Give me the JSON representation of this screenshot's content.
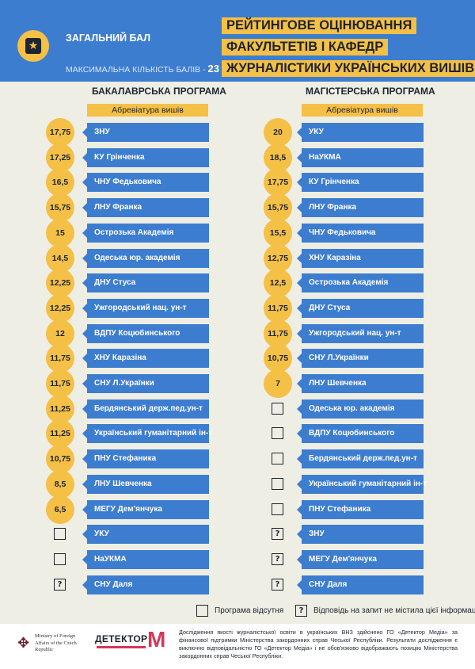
{
  "header": {
    "total_label": "ЗАГАЛЬНИЙ БАЛ",
    "max_label": "МАКСИМАЛЬНА КІЛЬКІСТЬ БАЛІВ -",
    "max_value": "23",
    "title_lines": [
      "РЕЙТИНГОВЕ ОЦІНЮВАННЯ",
      "ФАКУЛЬТЕТІВ І КАФЕДР",
      "ЖУРНАЛІСТИКИ УКРАЇНСЬКИХ ВИШІВ"
    ],
    "star_icon": "star-icon"
  },
  "chart_data": [
    {
      "type": "table",
      "title": "БАКАЛАВРСЬКА ПРОГРАМА",
      "column_label": "Абревіатура вишів",
      "max_score": 23,
      "rows": [
        {
          "name": "ЗНУ",
          "score": "17,75",
          "status": "score"
        },
        {
          "name": "КУ Грінченка",
          "score": "17,25",
          "status": "score"
        },
        {
          "name": "ЧНУ Федьковича",
          "score": "16,5",
          "status": "score"
        },
        {
          "name": "ЛНУ Франка",
          "score": "15,75",
          "status": "score"
        },
        {
          "name": "Острозька Академія",
          "score": "15",
          "status": "score"
        },
        {
          "name": "Одеська юр. академія",
          "score": "14,5",
          "status": "score"
        },
        {
          "name": "ДНУ Стуса",
          "score": "12,25",
          "status": "score"
        },
        {
          "name": "Ужгородський нац. ун-т",
          "score": "12,25",
          "status": "score"
        },
        {
          "name": "ВДПУ Коцюбинського",
          "score": "12",
          "status": "score"
        },
        {
          "name": "ХНУ Каразіна",
          "score": "11,75",
          "status": "score"
        },
        {
          "name": "СНУ Л.Українки",
          "score": "11,75",
          "status": "score"
        },
        {
          "name": "Бердянський держ.пед.ун-т",
          "score": "11,25",
          "status": "score"
        },
        {
          "name": "Український гуманітарний ін-т",
          "score": "11,25",
          "status": "score"
        },
        {
          "name": "ПНУ Стефаника",
          "score": "10,75",
          "status": "score"
        },
        {
          "name": "ЛНУ Шевченка",
          "score": "8,5",
          "status": "score"
        },
        {
          "name": "МЕГУ Дем'янчука",
          "score": "6,5",
          "status": "score"
        },
        {
          "name": "УКУ",
          "score": "",
          "status": "absent"
        },
        {
          "name": "НаУКМА",
          "score": "",
          "status": "absent"
        },
        {
          "name": "СНУ Даля",
          "score": "",
          "status": "no-info"
        }
      ]
    },
    {
      "type": "table",
      "title": "МАГІСТЕРСЬКА ПРОГРАМА",
      "column_label": "Абревіатура вишів",
      "max_score": 23,
      "rows": [
        {
          "name": "УКУ",
          "score": "20",
          "status": "score"
        },
        {
          "name": "НаУКМА",
          "score": "18,5",
          "status": "score"
        },
        {
          "name": "КУ Грінченка",
          "score": "17,75",
          "status": "score"
        },
        {
          "name": "ЛНУ Франка",
          "score": "15,75",
          "status": "score"
        },
        {
          "name": "ЧНУ Федьковича",
          "score": "15,5",
          "status": "score"
        },
        {
          "name": "ХНУ Каразіна",
          "score": "12,75",
          "status": "score"
        },
        {
          "name": "Острозька Академія",
          "score": "12,5",
          "status": "score"
        },
        {
          "name": "ДНУ Стуса",
          "score": "11,75",
          "status": "score"
        },
        {
          "name": "Ужгородський нац. ун-т",
          "score": "11,75",
          "status": "score"
        },
        {
          "name": "СНУ Л.Українки",
          "score": "10,75",
          "status": "score"
        },
        {
          "name": "ЛНУ Шевченка",
          "score": "7",
          "status": "score"
        },
        {
          "name": "Одеська юр. академія",
          "score": "",
          "status": "absent"
        },
        {
          "name": "ВДПУ Коцюбинського",
          "score": "",
          "status": "absent"
        },
        {
          "name": "Бердянський держ.пед.ун-т",
          "score": "",
          "status": "absent"
        },
        {
          "name": "Український гуманітарний ін-т",
          "score": "",
          "status": "absent"
        },
        {
          "name": "ПНУ Стефаника",
          "score": "",
          "status": "absent"
        },
        {
          "name": "ЗНУ",
          "score": "",
          "status": "no-info"
        },
        {
          "name": "МЕГУ Дем'янчука",
          "score": "",
          "status": "no-info"
        },
        {
          "name": "СНУ Даля",
          "score": "",
          "status": "no-info"
        }
      ]
    }
  ],
  "legend": {
    "absent_label": "Програма відсутня",
    "no_info_label": "Відповідь на запит не містила цієї інформації",
    "no_info_symbol": "?"
  },
  "footer": {
    "mfa_text": "Ministry of Foreign Affairs of the Czech Republic",
    "detector_name": "ДЕТЕКТОР",
    "detector_letter": "M",
    "disclaimer": "Дослідження якості журналістської освіти в українських ВНЗ здійснено ГО «Детектор Медіа» за фінансової підтримки Міністерства закордонних справ Чеської Республіки. Результати дослідження є виключно відповідальністю ГО «Детектор Медіа» і не обов'язково відображають позицію Міністерства закордонних справ Чеської Республіки."
  },
  "colors": {
    "blue": "#3d7dd0",
    "yellow": "#f5c046",
    "dark": "#1e2430",
    "background": "#efeee4"
  }
}
